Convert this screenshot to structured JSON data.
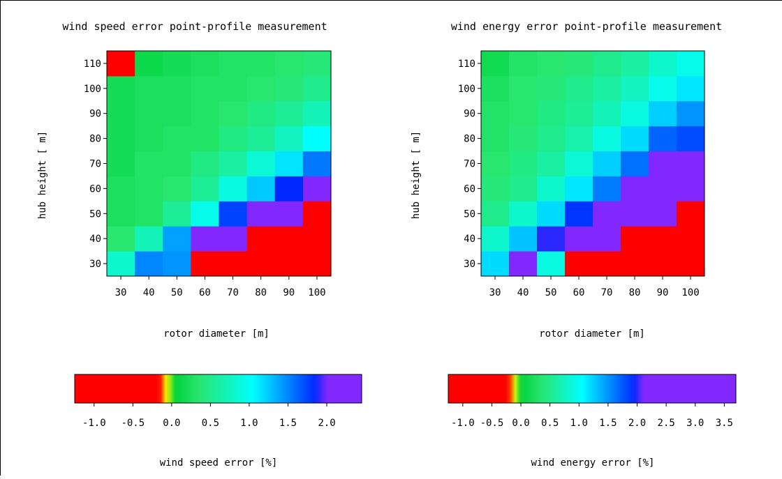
{
  "charts": [
    {
      "title": "wind speed error point-profile measurement",
      "xlabel": "rotor diameter [m]",
      "ylabel": "hub height [ m]",
      "colorbar_label": "wind speed error [%]",
      "colorbar_ticks": [
        "-1.0",
        "-0.5",
        "0.0",
        "0.5",
        "1.0",
        "1.5",
        "2.0"
      ]
    },
    {
      "title": "wind energy error point-profile measurement",
      "xlabel": "rotor diameter [m]",
      "ylabel": "hub height [ m]",
      "colorbar_label": "wind energy error [%]",
      "colorbar_ticks": [
        "-1.0",
        "-0.5",
        "0.0",
        "0.5",
        "1.0",
        "1.5",
        "2.0",
        "2.5",
        "3.0",
        "3.5"
      ]
    }
  ],
  "chart_data": [
    {
      "type": "heatmap",
      "title": "wind speed error point-profile measurement",
      "xlabel": "rotor diameter [m]",
      "ylabel": "hub height [ m]",
      "x": [
        30,
        40,
        50,
        60,
        70,
        80,
        90,
        100
      ],
      "y": [
        30,
        40,
        50,
        60,
        70,
        80,
        90,
        100,
        110
      ],
      "xlim": [
        25,
        105
      ],
      "ylim": [
        25,
        115
      ],
      "x_ticks": [
        30,
        40,
        50,
        60,
        70,
        80,
        90,
        100
      ],
      "y_ticks": [
        30,
        40,
        50,
        60,
        70,
        80,
        90,
        100,
        110
      ],
      "z": [
        [
          0.8,
          1.5,
          1.45,
          -1.0,
          -1.0,
          -1.0,
          -1.0,
          -1.0
        ],
        [
          0.35,
          0.7,
          1.4,
          2.1,
          2.1,
          -1.0,
          -1.0,
          -1.0
        ],
        [
          0.25,
          0.3,
          0.55,
          0.95,
          1.75,
          2.1,
          2.1,
          -1.0
        ],
        [
          0.25,
          0.3,
          0.35,
          0.55,
          0.9,
          1.25,
          1.85,
          2.1
        ],
        [
          0.2,
          0.3,
          0.3,
          0.45,
          0.6,
          0.85,
          1.15,
          1.55
        ],
        [
          0.2,
          0.25,
          0.3,
          0.3,
          0.45,
          0.55,
          0.75,
          1.05
        ],
        [
          0.2,
          0.25,
          0.25,
          0.3,
          0.35,
          0.45,
          0.55,
          0.7
        ],
        [
          0.2,
          0.25,
          0.25,
          0.3,
          0.3,
          0.35,
          0.4,
          0.5
        ],
        [
          -0.3,
          0.15,
          0.2,
          0.25,
          0.3,
          0.3,
          0.35,
          0.4
        ]
      ],
      "colorbar": {
        "range": [
          -1.25,
          2.45
        ],
        "ticks": [
          -1.0,
          -0.5,
          0.0,
          0.5,
          1.0,
          1.5,
          2.0
        ],
        "label": "wind speed error [%]",
        "red_end": -0.15,
        "blue_peak": 1.85
      }
    },
    {
      "type": "heatmap",
      "title": "wind energy error point-profile measurement",
      "xlabel": "rotor diameter [m]",
      "ylabel": "hub height [ m]",
      "x": [
        30,
        40,
        50,
        60,
        70,
        80,
        90,
        100
      ],
      "y": [
        30,
        40,
        50,
        60,
        70,
        80,
        90,
        100,
        110
      ],
      "xlim": [
        25,
        105
      ],
      "ylim": [
        25,
        115
      ],
      "x_ticks": [
        30,
        40,
        50,
        60,
        70,
        80,
        90,
        100
      ],
      "y_ticks": [
        30,
        40,
        50,
        60,
        70,
        80,
        90,
        100,
        110
      ],
      "z": [
        [
          1.2,
          2.7,
          0.9,
          -1.0,
          -1.0,
          -1.0,
          -1.0,
          -1.0
        ],
        [
          0.8,
          1.3,
          2.0,
          2.7,
          2.6,
          -1.0,
          -1.0,
          -1.0
        ],
        [
          0.5,
          0.8,
          1.2,
          1.9,
          2.7,
          2.7,
          2.7,
          -1.0
        ],
        [
          0.4,
          0.5,
          0.8,
          1.15,
          1.6,
          2.3,
          2.8,
          3.0
        ],
        [
          0.35,
          0.45,
          0.6,
          0.85,
          1.25,
          1.65,
          2.1,
          2.9
        ],
        [
          0.3,
          0.4,
          0.5,
          0.65,
          0.9,
          1.2,
          1.7,
          1.8
        ],
        [
          0.3,
          0.35,
          0.45,
          0.55,
          0.7,
          0.9,
          1.25,
          1.5
        ],
        [
          0.25,
          0.35,
          0.4,
          0.5,
          0.6,
          0.75,
          0.95,
          1.15
        ],
        [
          0.15,
          0.3,
          0.35,
          0.4,
          0.5,
          0.6,
          0.8,
          0.95
        ]
      ],
      "colorbar": {
        "range": [
          -1.25,
          3.7
        ],
        "ticks": [
          -1.0,
          -0.5,
          0.0,
          0.5,
          1.0,
          1.5,
          2.0,
          2.5,
          3.0,
          3.5
        ],
        "label": "wind energy error [%]",
        "red_end": -0.2,
        "blue_peak": 1.95
      }
    }
  ]
}
